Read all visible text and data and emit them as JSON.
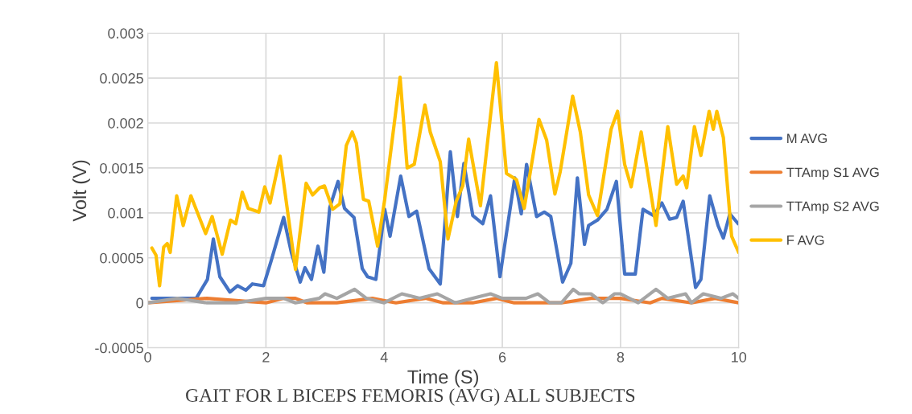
{
  "chart_data": {
    "type": "line",
    "title": "GAIT FOR L BICEPS FEMORIS (AVG) ALL SUBJECTS",
    "xlabel": "Time (S)",
    "ylabel": "Volt (V)",
    "xlim": [
      0,
      10
    ],
    "xticks": [
      0,
      2,
      4,
      6,
      8,
      10
    ],
    "ylim": [
      -0.0005,
      0.003
    ],
    "yticks": [
      {
        "value": -0.0005,
        "label": "-0.0005"
      },
      {
        "value": 0,
        "label": "0"
      },
      {
        "value": 0.0005,
        "label": "0.0005"
      },
      {
        "value": 0.001,
        "label": "0.001"
      },
      {
        "value": 0.0015,
        "label": "0.0015"
      },
      {
        "value": 0.002,
        "label": "0.002"
      },
      {
        "value": 0.0025,
        "label": "0.0025"
      },
      {
        "value": 0.003,
        "label": "0.003"
      }
    ],
    "grid": true,
    "legend": "right",
    "marker": "none",
    "line_style": "solid",
    "series": [
      {
        "name": "M AVG",
        "color": "#4472c4",
        "x": [
          0.07,
          0.3,
          0.46,
          0.82,
          1.01,
          1.11,
          1.22,
          1.39,
          1.52,
          1.66,
          1.77,
          1.96,
          2.09,
          2.3,
          2.43,
          2.58,
          2.66,
          2.77,
          2.88,
          2.98,
          3.08,
          3.22,
          3.33,
          3.49,
          3.63,
          3.72,
          3.86,
          4.01,
          4.1,
          4.28,
          4.42,
          4.55,
          4.76,
          4.95,
          5.12,
          5.24,
          5.35,
          5.5,
          5.67,
          5.8,
          5.96,
          6.21,
          6.32,
          6.41,
          6.58,
          6.71,
          6.82,
          7.02,
          7.16,
          7.27,
          7.39,
          7.46,
          7.61,
          7.77,
          7.93,
          8.07,
          8.25,
          8.38,
          8.56,
          8.7,
          8.83,
          8.95,
          9.06,
          9.27,
          9.36,
          9.51,
          9.65,
          9.74,
          9.85,
          9.99
        ],
        "values": [
          5e-05,
          5e-05,
          5e-05,
          5e-05,
          0.00026,
          0.00071,
          0.00029,
          0.00012,
          0.00019,
          0.00014,
          0.00021,
          0.00019,
          0.00047,
          0.00095,
          0.00056,
          0.00023,
          0.00039,
          0.00026,
          0.00063,
          0.00034,
          0.00106,
          0.00135,
          0.00105,
          0.00095,
          0.00038,
          0.00029,
          0.00026,
          0.00104,
          0.00074,
          0.00141,
          0.00096,
          0.00102,
          0.00038,
          0.00021,
          0.00168,
          0.00096,
          0.00155,
          0.00097,
          0.00088,
          0.00119,
          0.00029,
          0.00139,
          0.00099,
          0.00154,
          0.00096,
          0.00101,
          0.00096,
          0.00023,
          0.00044,
          0.00139,
          0.00065,
          0.00086,
          0.00092,
          0.00104,
          0.00135,
          0.00032,
          0.00032,
          0.00104,
          0.00097,
          0.00111,
          0.00093,
          0.00095,
          0.00113,
          0.00017,
          0.00026,
          0.00119,
          0.00086,
          0.00072,
          0.00099,
          0.00088
        ]
      },
      {
        "name": "TTAmp S1 AVG",
        "color": "#ed7d31",
        "x": [
          0,
          1,
          2,
          2.3,
          2.5,
          2.7,
          3.2,
          3.8,
          4.2,
          4.7,
          5.0,
          5.5,
          5.9,
          6.2,
          7.0,
          7.5,
          8.0,
          8.5,
          8.7,
          9.2,
          9.6,
          10
        ],
        "values": [
          0,
          5e-05,
          0,
          5e-05,
          5e-05,
          0,
          0,
          5e-05,
          0,
          5e-05,
          0,
          0,
          5e-05,
          0,
          0,
          5e-05,
          5e-05,
          0,
          5e-05,
          0,
          5e-05,
          0
        ]
      },
      {
        "name": "TTAmp S2 AVG",
        "color": "#a5a5a5",
        "x": [
          0,
          0.5,
          1.0,
          1.5,
          2.0,
          2.3,
          2.5,
          2.9,
          3.0,
          3.2,
          3.5,
          3.7,
          4.0,
          4.3,
          4.6,
          4.9,
          5.2,
          5.5,
          5.8,
          6.0,
          6.4,
          6.6,
          6.8,
          7.0,
          7.2,
          7.3,
          7.5,
          7.7,
          7.9,
          8.0,
          8.3,
          8.6,
          8.8,
          9.1,
          9.2,
          9.4,
          9.7,
          9.9,
          10
        ],
        "values": [
          0,
          5e-05,
          0,
          0,
          5e-05,
          5e-05,
          0,
          5e-05,
          0.0001,
          5e-05,
          0.00015,
          5e-05,
          0,
          0.0001,
          5e-05,
          0.0001,
          0,
          5e-05,
          0.0001,
          5e-05,
          5e-05,
          0.0001,
          0,
          0,
          0.00015,
          0.0001,
          0.0001,
          0,
          0.0001,
          0.0001,
          0,
          0.00015,
          5e-05,
          0.0001,
          0,
          0.0001,
          5e-05,
          0.0001,
          5e-05
        ]
      },
      {
        "name": "F AVG",
        "color": "#ffc000",
        "x": [
          0.07,
          0.14,
          0.2,
          0.27,
          0.33,
          0.38,
          0.49,
          0.6,
          0.73,
          0.98,
          1.09,
          1.26,
          1.4,
          1.49,
          1.6,
          1.7,
          1.88,
          1.98,
          2.07,
          2.24,
          2.5,
          2.68,
          2.79,
          2.91,
          2.99,
          3.13,
          3.25,
          3.36,
          3.46,
          3.53,
          3.65,
          3.74,
          3.89,
          4.01,
          4.27,
          4.39,
          4.51,
          4.69,
          4.78,
          4.95,
          5.08,
          5.22,
          5.33,
          5.43,
          5.63,
          5.9,
          6.07,
          6.24,
          6.37,
          6.48,
          6.62,
          6.75,
          6.89,
          6.98,
          7.19,
          7.32,
          7.46,
          7.61,
          7.74,
          7.84,
          7.95,
          8.07,
          8.18,
          8.35,
          8.6,
          8.8,
          8.95,
          9.06,
          9.12,
          9.25,
          9.36,
          9.5,
          9.57,
          9.63,
          9.74,
          9.88,
          10
        ],
        "values": [
          0.00061,
          0.00053,
          0.00019,
          0.00062,
          0.00066,
          0.00056,
          0.00119,
          0.00086,
          0.00119,
          0.00077,
          0.00096,
          0.00054,
          0.00092,
          0.00088,
          0.00123,
          0.00105,
          0.00101,
          0.00129,
          0.00111,
          0.00163,
          0.00037,
          0.00133,
          0.0012,
          0.00128,
          0.0013,
          0.00104,
          0.0011,
          0.00175,
          0.0019,
          0.00178,
          0.00115,
          0.00113,
          0.00063,
          0.00115,
          0.00251,
          0.0015,
          0.00154,
          0.0022,
          0.0019,
          0.00157,
          0.00071,
          0.00113,
          0.0013,
          0.00182,
          0.00108,
          0.00267,
          0.00144,
          0.00137,
          0.00105,
          0.00148,
          0.00204,
          0.00181,
          0.00121,
          0.00146,
          0.0023,
          0.0019,
          0.0012,
          0.00097,
          0.00151,
          0.00193,
          0.00213,
          0.00154,
          0.00129,
          0.0019,
          0.00086,
          0.00196,
          0.00132,
          0.00141,
          0.00128,
          0.00196,
          0.00164,
          0.00213,
          0.00193,
          0.00213,
          0.00184,
          0.00074,
          0.00056
        ]
      }
    ]
  }
}
